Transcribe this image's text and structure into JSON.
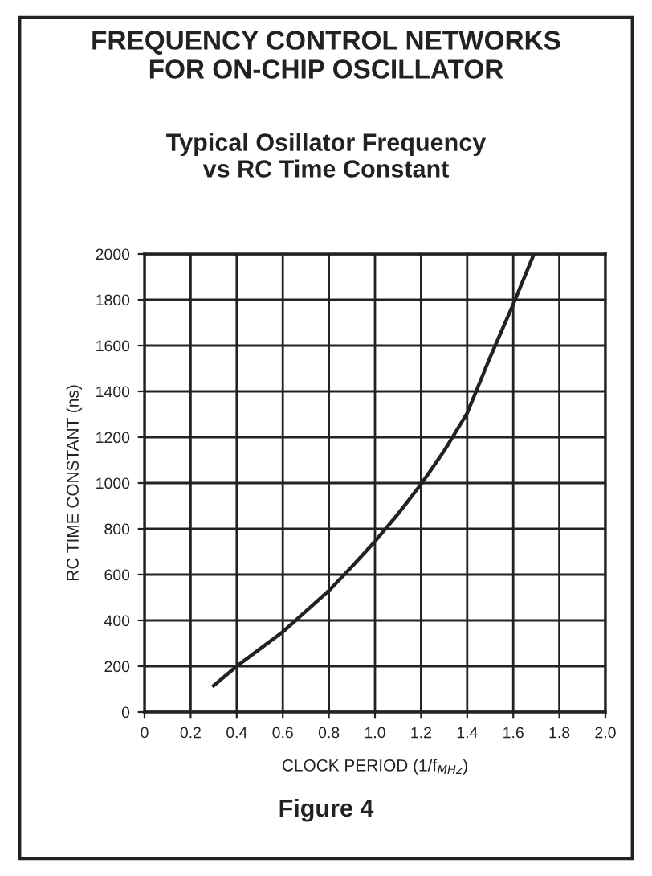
{
  "chart_data": {
    "type": "line",
    "title": "FREQUENCY CONTROL NETWORKS\nFOR ON-CHIP OSCILLATOR",
    "subtitle": "Typical Osillator Frequency\nvs RC Time Constant",
    "xlabel": "CLOCK PERIOD (1/f$_{MHz}$)",
    "ylabel": "RC TIME CONSTANT (ns)",
    "annotations": [
      "Figure 4"
    ],
    "series": [
      {
        "color": "#222222",
        "x": [
          0.3,
          0.4,
          0.5,
          0.6,
          0.7,
          0.8,
          0.9,
          1.0,
          1.1,
          1.2,
          1.3,
          1.4,
          1.5,
          1.6,
          1.69
        ],
        "values": [
          115,
          200,
          275,
          350,
          440,
          530,
          635,
          745,
          865,
          995,
          1140,
          1305,
          1550,
          1780,
          2000
        ]
      }
    ],
    "xlim": [
      0,
      2.0
    ],
    "ylim": [
      0,
      2000
    ],
    "xticks": [
      0,
      0.2,
      0.4,
      0.6,
      0.8,
      {
        "value": 1,
        "label": "1.0"
      },
      1.2,
      1.4,
      1.6,
      1.8,
      {
        "value": 2,
        "label": "2.0"
      }
    ],
    "yticks": [
      0,
      200,
      400,
      600,
      800,
      1000,
      1200,
      1400,
      1600,
      1800,
      2000
    ],
    "grid": true,
    "marker": "none",
    "line_style": "solid"
  }
}
